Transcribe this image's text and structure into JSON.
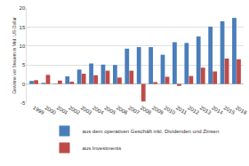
{
  "chart_data": {
    "type": "bar",
    "y_label": "Gewinne vor Steuern in Mrd. US-Dollar",
    "categories": [
      "1999",
      "2000",
      "2001",
      "2002",
      "2003",
      "2004",
      "2005",
      "2006",
      "2007",
      "2008",
      "2009",
      "2010",
      "2011",
      "2012",
      "2013",
      "2014",
      "2015",
      "2016"
    ],
    "series": [
      {
        "name": "aus dem operativen Geschäft inkl. Dividenden und Zinsen",
        "color": "#4a7ebb",
        "values": [
          0.8,
          0.3,
          0.1,
          2.0,
          3.8,
          5.4,
          5.1,
          5.0,
          9.3,
          9.7,
          9.7,
          7.7,
          11.0,
          10.8,
          12.5,
          15.1,
          16.5,
          17.4
        ]
      },
      {
        "name": "aus Investments",
        "color": "#be4b48",
        "values": [
          1.0,
          2.4,
          0.9,
          0.6,
          2.7,
          2.3,
          3.5,
          1.7,
          3.5,
          -4.6,
          0.5,
          1.9,
          -0.5,
          2.1,
          4.3,
          3.3,
          6.7,
          6.5
        ]
      }
    ],
    "ylim": [
      -5,
      20
    ],
    "yticks": [
      -5,
      0,
      5,
      10,
      15,
      20
    ],
    "grid": true,
    "legend": "bottom"
  }
}
